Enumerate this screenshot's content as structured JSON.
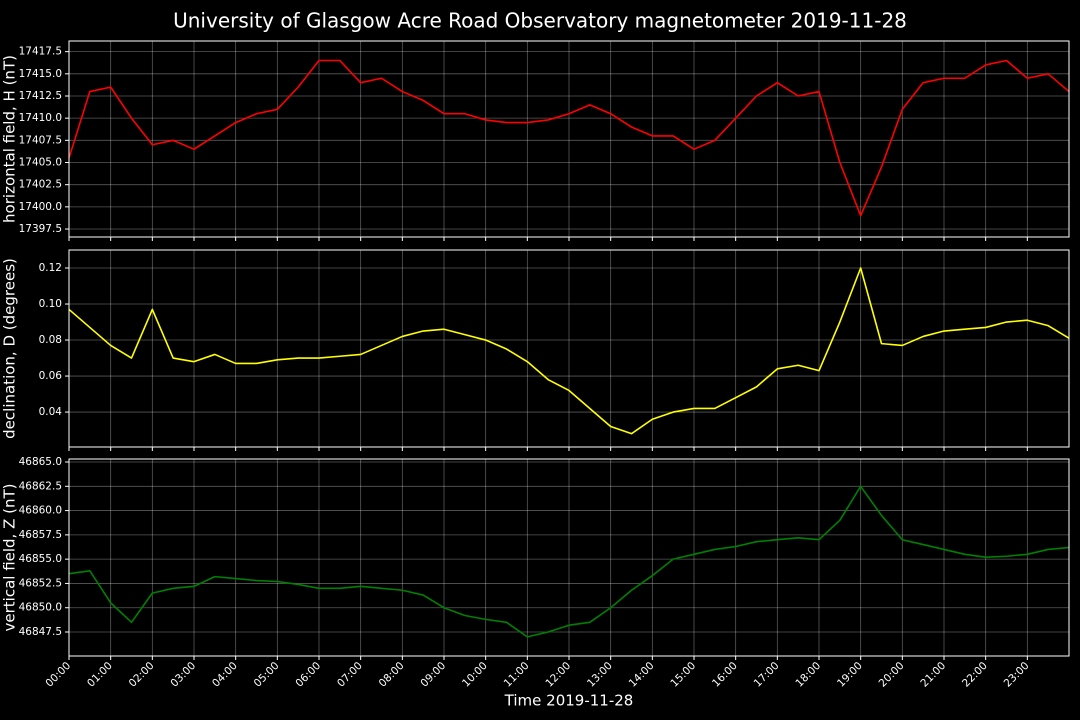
{
  "chart_data": [
    {
      "type": "line",
      "title": "University of Glasgow Acre Road Observatory magnetometer 2019-11-28",
      "ylabel": "horizontal field, H (nT)",
      "color": "#ff0000",
      "grid": true,
      "x": [
        0,
        0.5,
        1,
        1.5,
        2,
        2.5,
        3,
        3.5,
        4,
        4.5,
        5,
        5.5,
        6,
        6.5,
        7,
        7.5,
        8,
        8.5,
        9,
        9.5,
        10,
        10.5,
        11,
        11.5,
        12,
        12.5,
        13,
        13.5,
        14,
        14.5,
        15,
        15.5,
        16,
        16.5,
        17,
        17.5,
        18,
        18.5,
        19,
        19.5,
        20,
        20.5,
        21,
        21.5,
        22,
        22.5,
        23,
        23.5,
        24
      ],
      "values": [
        17405.5,
        17413,
        17413.5,
        17410,
        17407,
        17407.5,
        17406.5,
        17408,
        17409.5,
        17410.5,
        17411,
        17413.5,
        17416.5,
        17416.5,
        17414,
        17414.5,
        17413,
        17412,
        17410.5,
        17410.5,
        17409.8,
        17409.5,
        17409.5,
        17409.8,
        17410.5,
        17411.5,
        17410.5,
        17409,
        17408,
        17408,
        17406.5,
        17407.5,
        17410,
        17412.5,
        17414,
        17412.5,
        17413,
        17405,
        17399,
        17404.5,
        17411,
        17414,
        17414.5,
        17414.5,
        17416,
        17416.5,
        17414.5,
        17415,
        17413
      ],
      "xlim": [
        0,
        24
      ],
      "ylim": [
        17396.6,
        17418.7
      ],
      "yticks": [
        17397.5,
        {
          "value": 17400,
          "label": "17400.0"
        },
        17402.5,
        {
          "value": 17405,
          "label": "17405.0"
        },
        17407.5,
        {
          "value": 17410,
          "label": "17410.0"
        },
        17412.5,
        {
          "value": 17415,
          "label": "17415.0"
        },
        17417.5
      ]
    },
    {
      "type": "line",
      "ylabel": "declination, D (degrees)",
      "color": "#ffff00",
      "grid": true,
      "x": [
        0,
        0.5,
        1,
        1.5,
        2,
        2.5,
        3,
        3.5,
        4,
        4.5,
        5,
        5.5,
        6,
        6.5,
        7,
        7.5,
        8,
        8.5,
        9,
        9.5,
        10,
        10.5,
        11,
        11.5,
        12,
        12.5,
        13,
        13.5,
        14,
        14.5,
        15,
        15.5,
        16,
        16.5,
        17,
        17.5,
        18,
        18.5,
        19,
        19.5,
        20,
        20.5,
        21,
        21.5,
        22,
        22.5,
        23,
        23.5,
        24
      ],
      "values": [
        0.097,
        0.087,
        0.077,
        0.07,
        0.097,
        0.07,
        0.068,
        0.072,
        0.067,
        0.067,
        0.069,
        0.07,
        0.07,
        0.071,
        0.072,
        0.077,
        0.082,
        0.085,
        0.086,
        0.083,
        0.08,
        0.075,
        0.068,
        0.058,
        0.052,
        0.042,
        0.032,
        0.028,
        0.036,
        0.04,
        0.042,
        0.042,
        0.048,
        0.054,
        0.064,
        0.066,
        0.063,
        0.09,
        0.12,
        0.078,
        0.077,
        0.082,
        0.085,
        0.086,
        0.087,
        0.09,
        0.091,
        0.088,
        0.081
      ],
      "xlim": [
        0,
        24
      ],
      "ylim": [
        0.0206,
        0.13
      ],
      "yticks": [
        0.04,
        0.06,
        0.08,
        {
          "value": 0.1,
          "label": "0.10"
        },
        0.12
      ]
    },
    {
      "type": "line",
      "ylabel": "vertical field, Z (nT)",
      "xlabel": "Time 2019-11-28",
      "color": "#008000",
      "grid": true,
      "x": [
        0,
        0.5,
        1,
        1.5,
        2,
        2.5,
        3,
        3.5,
        4,
        4.5,
        5,
        5.5,
        6,
        6.5,
        7,
        7.5,
        8,
        8.5,
        9,
        9.5,
        10,
        10.5,
        11,
        11.5,
        12,
        12.5,
        13,
        13.5,
        14,
        14.5,
        15,
        15.5,
        16,
        16.5,
        17,
        17.5,
        18,
        18.5,
        19,
        19.5,
        20,
        20.5,
        21,
        21.5,
        22,
        22.5,
        23,
        23.5,
        24
      ],
      "values": [
        46853.5,
        46853.8,
        46850.5,
        46848.5,
        46851.5,
        46852,
        46852.2,
        46853.2,
        46853,
        46852.8,
        46852.7,
        46852.4,
        46852,
        46852,
        46852.2,
        46852,
        46851.8,
        46851.3,
        46850,
        46849.2,
        46848.8,
        46848.5,
        46847,
        46847.5,
        46848.2,
        46848.5,
        46850,
        46851.8,
        46853.3,
        46855,
        46855.5,
        46856,
        46856.3,
        46856.8,
        46857,
        46857.2,
        46857,
        46859,
        46862.5,
        46859.5,
        46857,
        46856.5,
        46856,
        46855.5,
        46855.2,
        46855.3,
        46855.5,
        46856,
        46856.2
      ],
      "xlim": [
        0,
        24
      ],
      "ylim": [
        46845.03,
        46865.31
      ],
      "yticks": [
        {
          "value": 46847.5,
          "label": "46847.5"
        },
        {
          "value": 46850,
          "label": "46850.0"
        },
        46852.5,
        {
          "value": 46855,
          "label": "46855.0"
        },
        46857.5,
        {
          "value": 46860,
          "label": "46860.0"
        },
        46862.5,
        {
          "value": 46865,
          "label": "46865.0"
        }
      ],
      "xticks": [
        {
          "value": 0,
          "label": "00:00"
        },
        {
          "value": 1,
          "label": "01:00"
        },
        {
          "value": 2,
          "label": "02:00"
        },
        {
          "value": 3,
          "label": "03:00"
        },
        {
          "value": 4,
          "label": "04:00"
        },
        {
          "value": 5,
          "label": "05:00"
        },
        {
          "value": 6,
          "label": "06:00"
        },
        {
          "value": 7,
          "label": "07:00"
        },
        {
          "value": 8,
          "label": "08:00"
        },
        {
          "value": 9,
          "label": "09:00"
        },
        {
          "value": 10,
          "label": "10:00"
        },
        {
          "value": 11,
          "label": "11:00"
        },
        {
          "value": 12,
          "label": "12:00"
        },
        {
          "value": 13,
          "label": "13:00"
        },
        {
          "value": 14,
          "label": "14:00"
        },
        {
          "value": 15,
          "label": "15:00"
        },
        {
          "value": 16,
          "label": "16:00"
        },
        {
          "value": 17,
          "label": "17:00"
        },
        {
          "value": 18,
          "label": "18:00"
        },
        {
          "value": 19,
          "label": "19:00"
        },
        {
          "value": 20,
          "label": "20:00"
        },
        {
          "value": 21,
          "label": "21:00"
        },
        {
          "value": 22,
          "label": "22:00"
        },
        {
          "value": 23,
          "label": "23:00"
        }
      ]
    }
  ]
}
